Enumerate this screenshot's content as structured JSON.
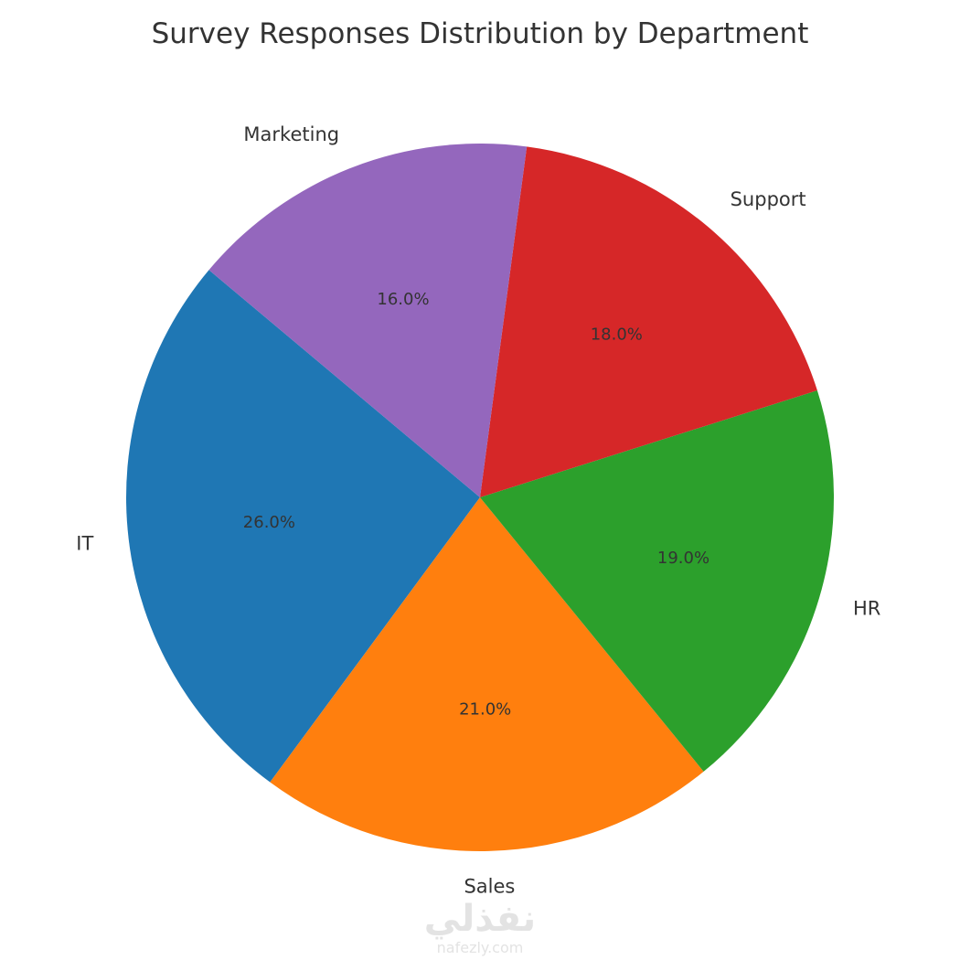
{
  "chart_data": {
    "type": "pie",
    "title": "Survey Responses Distribution by Department",
    "categories": [
      "IT",
      "Sales",
      "HR",
      "Support",
      "Marketing"
    ],
    "values": [
      26.0,
      21.0,
      19.0,
      18.0,
      16.0
    ],
    "percent_labels": [
      "26.0%",
      "21.0%",
      "19.0%",
      "18.0%",
      "16.0%"
    ],
    "colors": [
      "#1f77b4",
      "#ff7f0e",
      "#2ca02c",
      "#d62728",
      "#9467bd"
    ],
    "start_angle_deg": 140,
    "direction": "counterclockwise",
    "legend": false
  },
  "watermark": {
    "logo": "نفذلي",
    "url": "nafezly.com"
  }
}
